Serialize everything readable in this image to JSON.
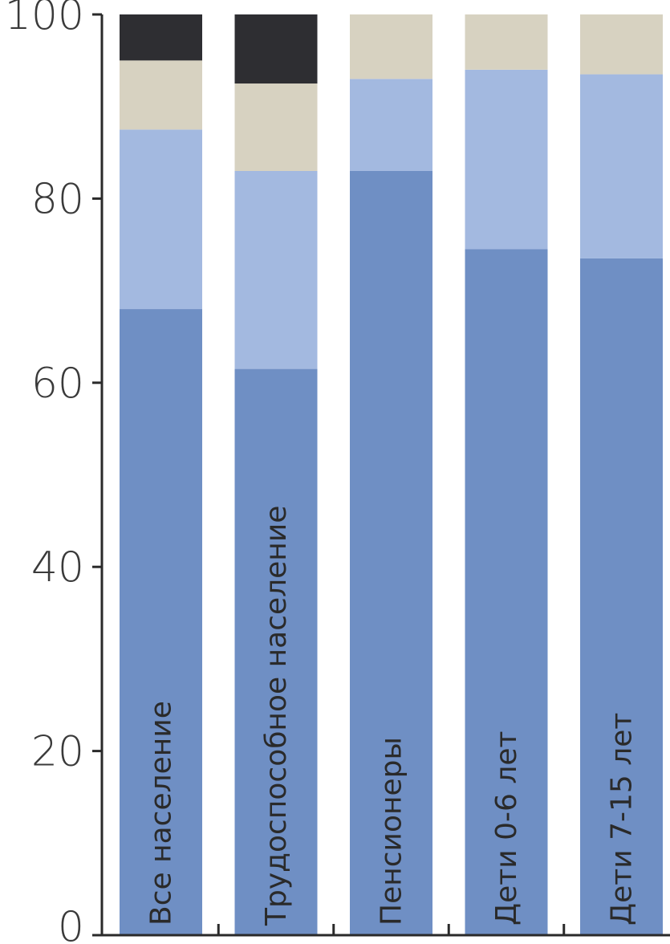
{
  "chart_data": {
    "type": "bar",
    "stacked": true,
    "categories": [
      "Все население",
      "Трудоспособное население",
      "Пенсионеры",
      "Дети 0-6 лет",
      "Дети 7-15 лет"
    ],
    "series": [
      {
        "values": [
          68,
          61.5,
          83,
          74.5,
          73.5
        ],
        "color": "#6f8fc4"
      },
      {
        "values": [
          19.5,
          21.5,
          10,
          19.5,
          20
        ],
        "color": "#a3b9e0"
      },
      {
        "values": [
          7.5,
          9.5,
          7,
          6,
          6.5
        ],
        "color": "#d7d2c1"
      },
      {
        "values": [
          5,
          7.5,
          0,
          0,
          0
        ],
        "color": "#2e2e32"
      }
    ],
    "yticks": [
      "0",
      "20",
      "40",
      "60",
      "80",
      "100"
    ],
    "ylim": [
      0,
      100
    ],
    "xlabel": "",
    "ylabel": "",
    "grid": false,
    "legend": "none"
  }
}
